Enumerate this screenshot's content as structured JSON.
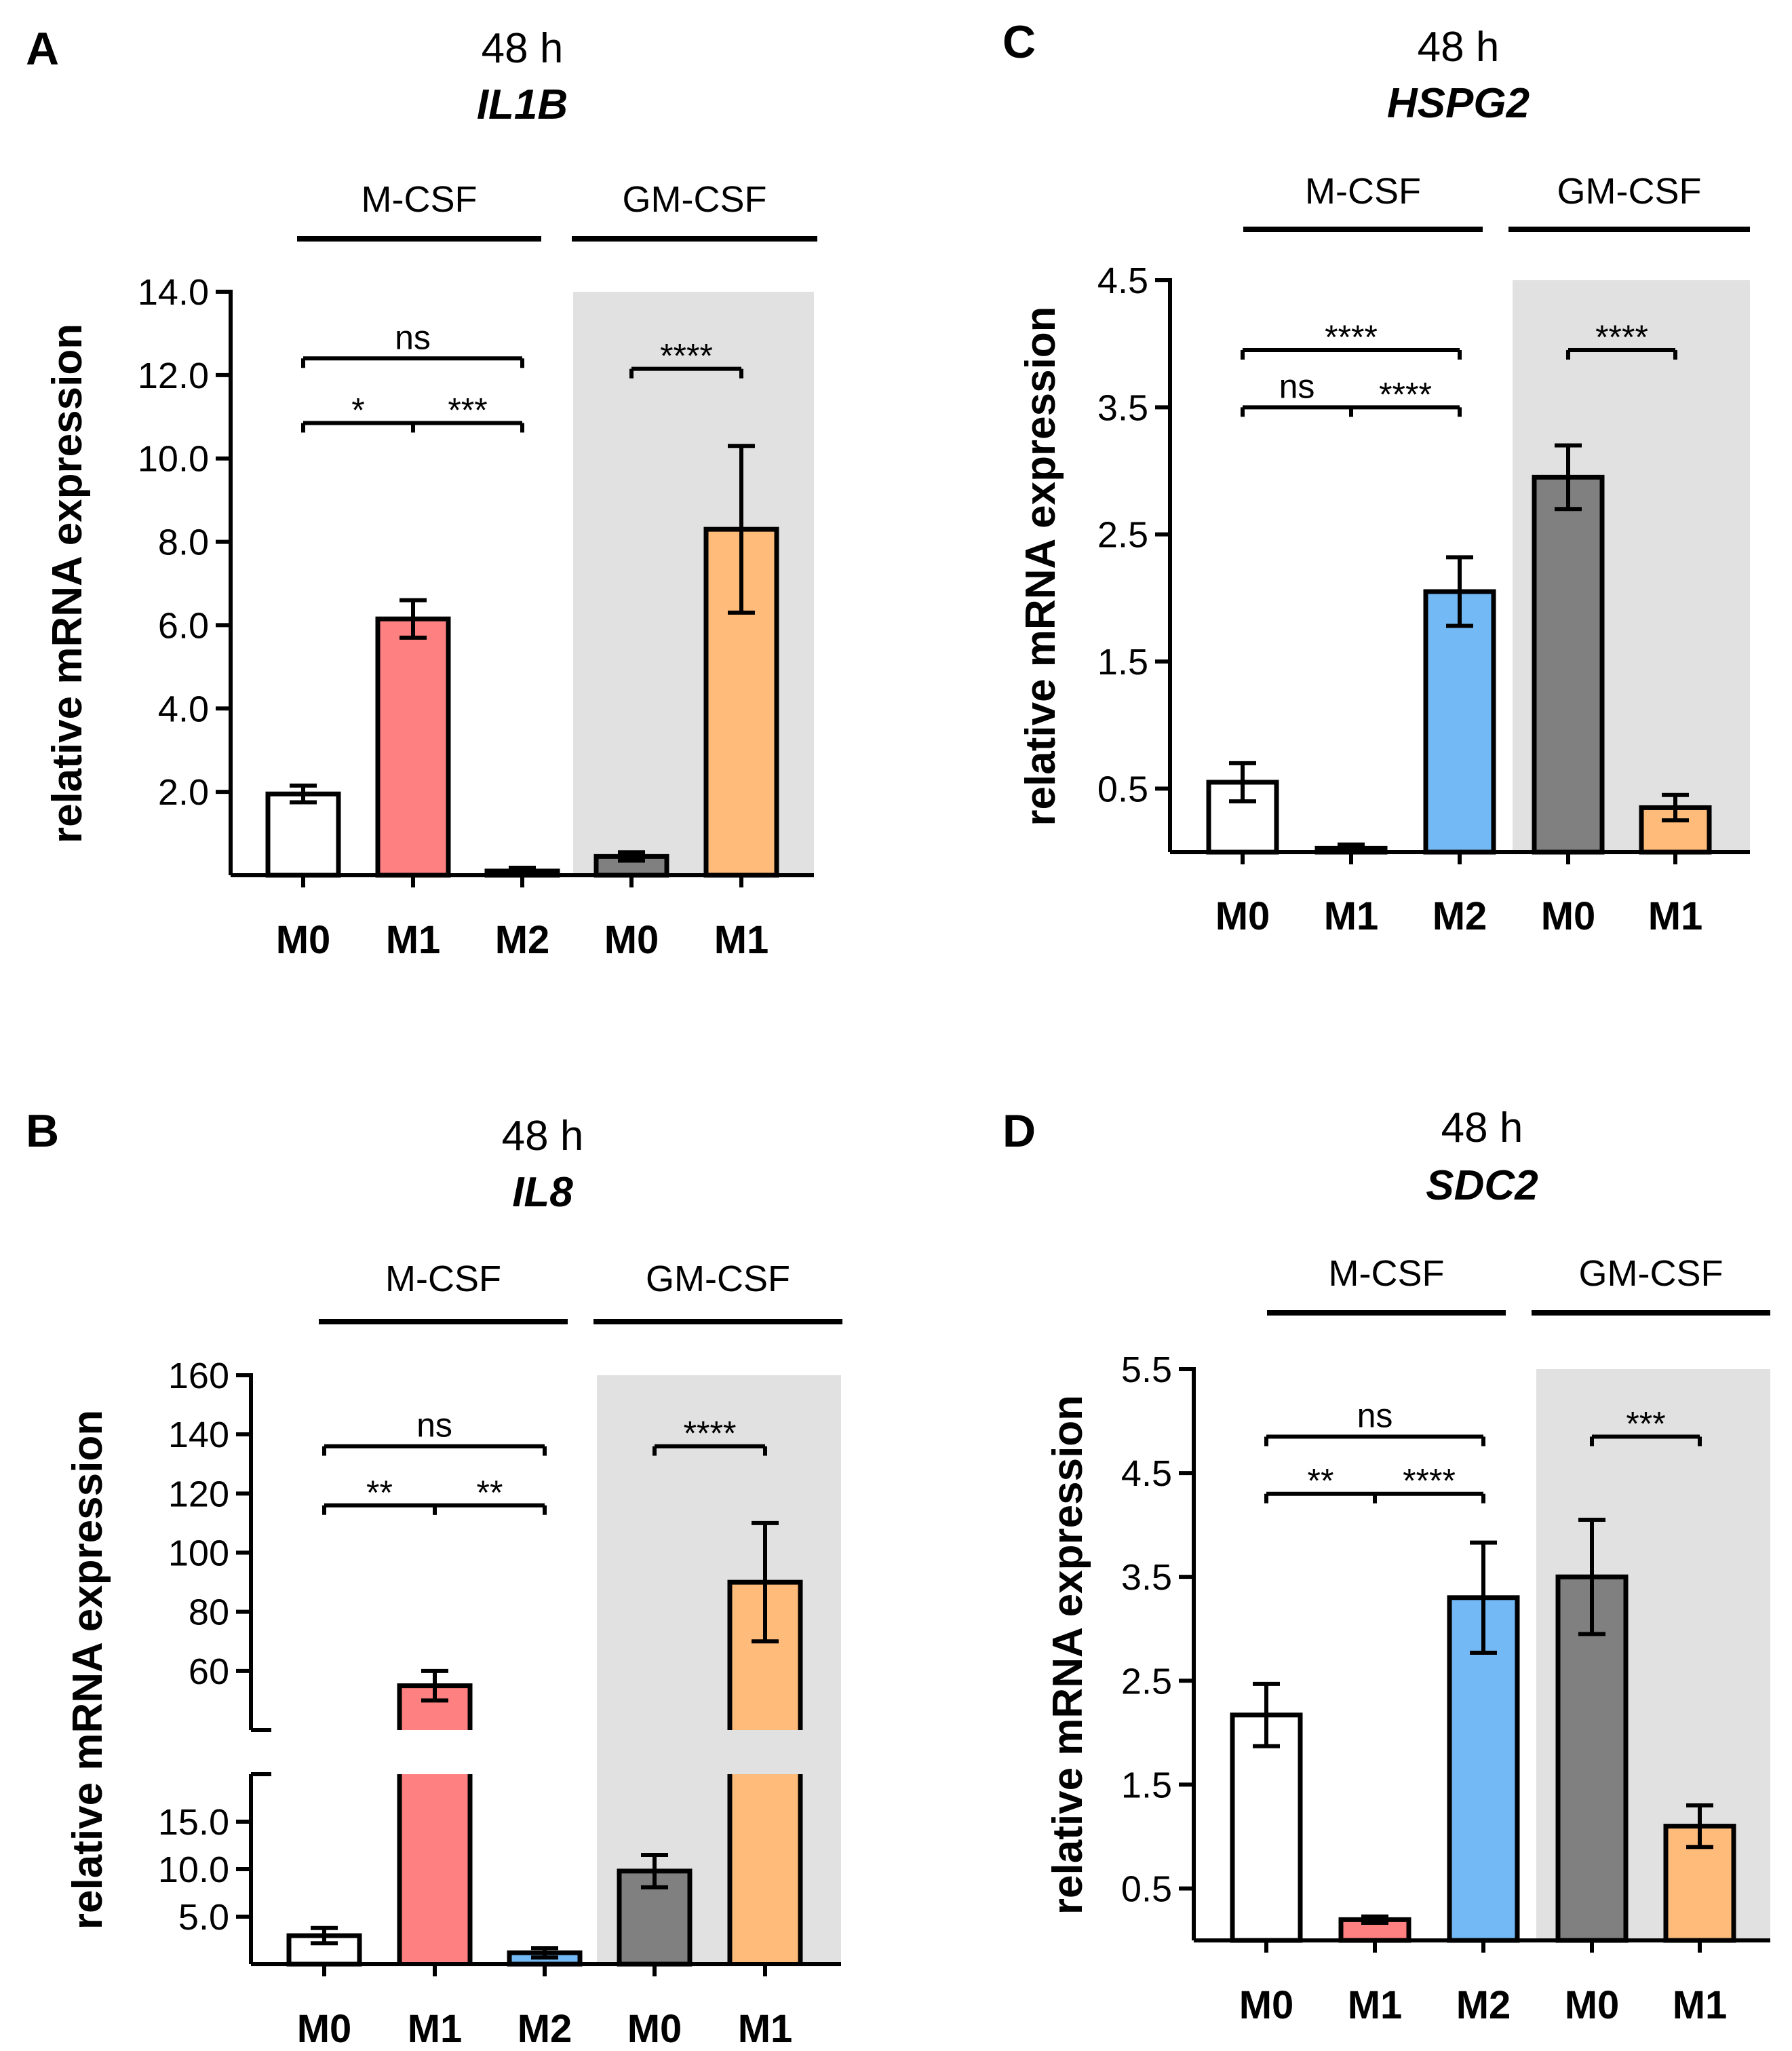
{
  "figure": {
    "panel_letters": [
      "A",
      "B",
      "C",
      "D"
    ]
  },
  "chart_data": [
    {
      "panel": "A",
      "type": "bar",
      "title": "48 h",
      "gene": "IL1B",
      "ylabel": "relative mRNA expression",
      "ylim": [
        0,
        14
      ],
      "yticks": [
        2,
        4,
        6,
        8,
        10,
        12,
        14
      ],
      "ytick_labels": [
        "2.0",
        "4.0",
        "6.0",
        "8.0",
        "10.0",
        "12.0",
        "14.0"
      ],
      "categories": [
        "M0",
        "M1",
        "M2",
        "M0",
        "M1"
      ],
      "values": [
        1.95,
        6.15,
        0.1,
        0.45,
        8.3
      ],
      "errors": [
        0.2,
        0.45,
        0.08,
        0.1,
        2.0
      ],
      "colors": [
        "#ffffff",
        "#ff8080",
        "#73b9f5",
        "#808080",
        "#ffbb7a"
      ],
      "groups": [
        {
          "label": "M-CSF",
          "start": 0,
          "end": 2
        },
        {
          "label": "GM-CSF",
          "start": 3,
          "end": 4,
          "shaded": true
        }
      ],
      "significance": [
        {
          "from": 0,
          "to": 2,
          "label": "ns",
          "level": 12.4
        },
        {
          "from": 0,
          "to": 1,
          "label": "*",
          "level": 10.85
        },
        {
          "from": 1,
          "to": 2,
          "label": "***",
          "level": 10.85
        },
        {
          "from": 3,
          "to": 4,
          "label": "****",
          "level": 12.15
        }
      ]
    },
    {
      "panel": "C",
      "type": "bar",
      "title": "48 h",
      "gene": "HSPG2",
      "ylabel": "relative mRNA expression",
      "ylim": [
        0,
        4.5
      ],
      "yticks": [
        0.5,
        1.5,
        2.5,
        3.5,
        4.5
      ],
      "ytick_labels": [
        "0.5",
        "1.5",
        "2.5",
        "3.5",
        "4.5"
      ],
      "categories": [
        "M0",
        "M1",
        "M2",
        "M0",
        "M1"
      ],
      "values": [
        0.55,
        0.03,
        2.05,
        2.95,
        0.35
      ],
      "errors": [
        0.15,
        0.03,
        0.27,
        0.25,
        0.1
      ],
      "colors": [
        "#ffffff",
        "#ff8080",
        "#73b9f5",
        "#808080",
        "#ffbb7a"
      ],
      "groups": [
        {
          "label": "M-CSF",
          "start": 0,
          "end": 2
        },
        {
          "label": "GM-CSF",
          "start": 3,
          "end": 4,
          "shaded": true
        }
      ],
      "significance": [
        {
          "from": 0,
          "to": 2,
          "label": "****",
          "level": 3.95
        },
        {
          "from": 0,
          "to": 1,
          "label": "ns",
          "level": 3.5
        },
        {
          "from": 1,
          "to": 2,
          "label": "****",
          "level": 3.5
        },
        {
          "from": 3,
          "to": 4,
          "label": "****",
          "level": 3.95
        }
      ]
    },
    {
      "panel": "B",
      "type": "bar",
      "title": "48 h",
      "gene": "IL8",
      "ylabel": "relative mRNA expression",
      "broken_axis": true,
      "lower_ylim": [
        0,
        20
      ],
      "upper_ylim": [
        40,
        160
      ],
      "lower_yticks": [
        5,
        10,
        15
      ],
      "lower_ytick_labels": [
        "5.0",
        "10.0",
        "15.0"
      ],
      "upper_yticks": [
        60,
        80,
        100,
        120,
        140,
        160
      ],
      "upper_ytick_labels": [
        "60",
        "80",
        "100",
        "120",
        "140",
        "160"
      ],
      "categories": [
        "M0",
        "M1",
        "M2",
        "M0",
        "M1"
      ],
      "values": [
        3,
        55,
        1.2,
        9.8,
        90
      ],
      "errors": [
        0.8,
        5,
        0.5,
        1.7,
        20
      ],
      "colors": [
        "#ffffff",
        "#ff8080",
        "#73b9f5",
        "#808080",
        "#ffbb7a"
      ],
      "groups": [
        {
          "label": "M-CSF",
          "start": 0,
          "end": 2
        },
        {
          "label": "GM-CSF",
          "start": 3,
          "end": 4,
          "shaded": true
        }
      ],
      "significance": [
        {
          "from": 0,
          "to": 2,
          "label": "ns",
          "level": 136
        },
        {
          "from": 0,
          "to": 1,
          "label": "**",
          "level": 116
        },
        {
          "from": 1,
          "to": 2,
          "label": "**",
          "level": 116
        },
        {
          "from": 3,
          "to": 4,
          "label": "****",
          "level": 136
        }
      ]
    },
    {
      "panel": "D",
      "type": "bar",
      "title": "48 h",
      "gene": "SDC2",
      "ylabel": "relative mRNA expression",
      "ylim": [
        0,
        5.5
      ],
      "yticks": [
        0.5,
        1.5,
        2.5,
        3.5,
        4.5,
        5.5
      ],
      "ytick_labels": [
        "0.5",
        "1.5",
        "2.5",
        "3.5",
        "4.5",
        "5.5"
      ],
      "categories": [
        "M0",
        "M1",
        "M2",
        "M0",
        "M1"
      ],
      "values": [
        2.17,
        0.2,
        3.3,
        3.5,
        1.1
      ],
      "errors": [
        0.3,
        0.03,
        0.53,
        0.55,
        0.2
      ],
      "colors": [
        "#ffffff",
        "#ff8080",
        "#73b9f5",
        "#808080",
        "#ffbb7a"
      ],
      "groups": [
        {
          "label": "M-CSF",
          "start": 0,
          "end": 2
        },
        {
          "label": "GM-CSF",
          "start": 3,
          "end": 4,
          "shaded": true
        }
      ],
      "significance": [
        {
          "from": 0,
          "to": 2,
          "label": "ns",
          "level": 4.85
        },
        {
          "from": 0,
          "to": 1,
          "label": "**",
          "level": 4.3
        },
        {
          "from": 1,
          "to": 2,
          "label": "****",
          "level": 4.3
        },
        {
          "from": 3,
          "to": 4,
          "label": "***",
          "level": 4.85
        }
      ]
    }
  ]
}
